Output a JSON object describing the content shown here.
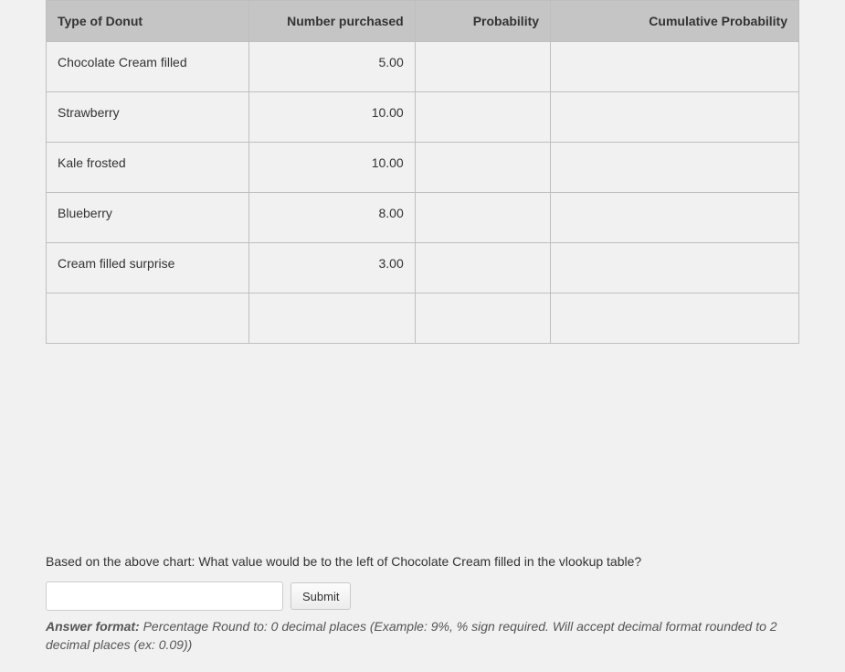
{
  "table": {
    "columns": [
      {
        "key": "type",
        "label": "Type of Donut",
        "header_align": "left",
        "cell_align": "left"
      },
      {
        "key": "number",
        "label": "Number purchased",
        "header_align": "right",
        "cell_align": "right"
      },
      {
        "key": "prob",
        "label": "Probability",
        "header_align": "right",
        "cell_align": "right"
      },
      {
        "key": "cprob",
        "label": "Cumulative Probability",
        "header_align": "right",
        "cell_align": "right"
      }
    ],
    "rows": [
      {
        "type": "Chocolate Cream filled",
        "number": "5.00",
        "prob": "",
        "cprob": ""
      },
      {
        "type": "Strawberry",
        "number": "10.00",
        "prob": "",
        "cprob": ""
      },
      {
        "type": "Kale frosted",
        "number": "10.00",
        "prob": "",
        "cprob": ""
      },
      {
        "type": "Blueberry",
        "number": "8.00",
        "prob": "",
        "cprob": ""
      },
      {
        "type": "Cream filled surprise",
        "number": "3.00",
        "prob": "",
        "cprob": ""
      },
      {
        "type": "",
        "number": "",
        "prob": "",
        "cprob": ""
      }
    ],
    "header_bg": "#c5c5c5",
    "border_color": "#bfbfbf",
    "font_size": 14
  },
  "question": {
    "text": "Based on the above chart: What value would be to the left of Chocolate Cream filled in the vlookup table?"
  },
  "answer": {
    "input_value": "",
    "submit_label": "Submit"
  },
  "format_note": {
    "label": "Answer format:",
    "text": " Percentage Round to: 0 decimal places (Example: 9%, % sign required. Will accept decimal format rounded to 2 decimal places (ex: 0.09))"
  },
  "colors": {
    "page_bg": "#f1f1f1",
    "text": "#333333",
    "note_text": "#555555",
    "input_border": "#cccccc",
    "button_border": "#c8c8c8"
  }
}
